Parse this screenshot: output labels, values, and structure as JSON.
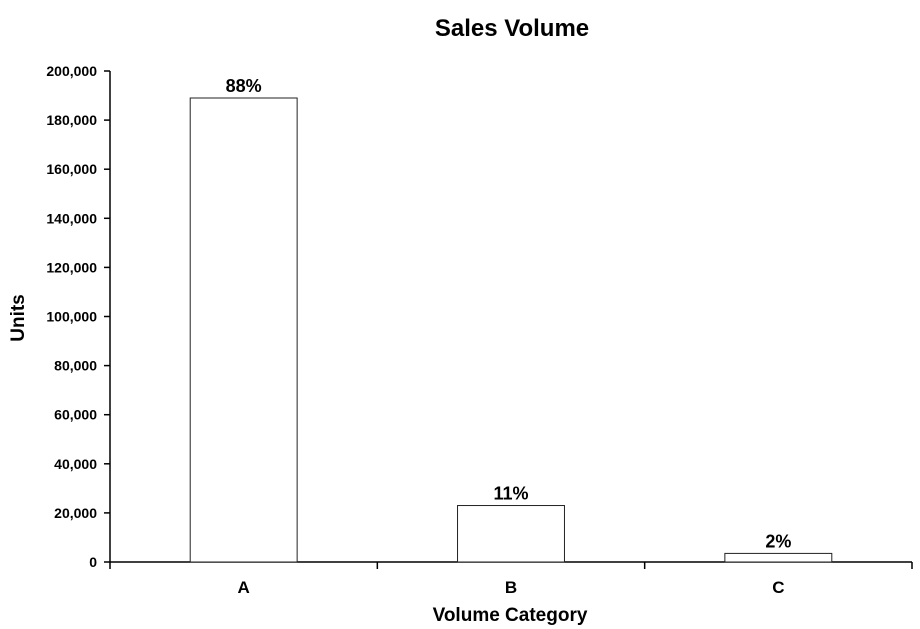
{
  "chart_data": {
    "type": "bar",
    "title": "Sales Volume",
    "xlabel": "Volume Category",
    "ylabel": "Units",
    "categories": [
      "A",
      "B",
      "C"
    ],
    "values": [
      189000,
      23000,
      3500
    ],
    "data_labels": [
      "88%",
      "11%",
      "2%"
    ],
    "ylim": [
      0,
      200000
    ],
    "yticks": [
      0,
      20000,
      40000,
      60000,
      80000,
      100000,
      120000,
      140000,
      160000,
      180000,
      200000
    ],
    "ytick_labels": [
      "0",
      "20,000",
      "40,000",
      "60,000",
      "80,000",
      "100,000",
      "120,000",
      "140,000",
      "160,000",
      "180,000",
      "200,000"
    ],
    "grid": false,
    "legend": "none",
    "colors": {
      "bar_fill": "#ffffff",
      "bar_stroke": "#222222",
      "axis": "#000000"
    }
  }
}
